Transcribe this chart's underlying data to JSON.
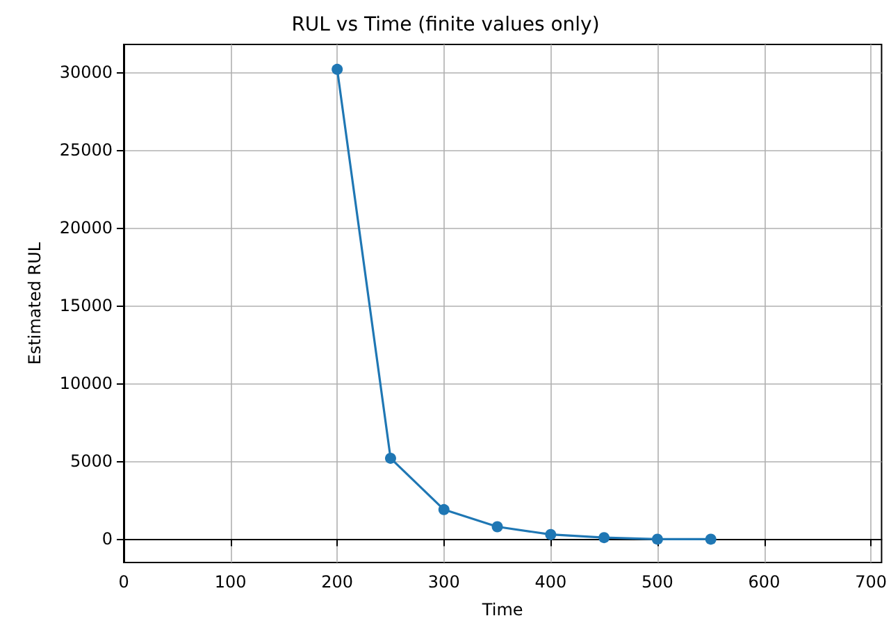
{
  "chart_data": {
    "type": "line",
    "title": "RUL vs Time (finite values only)",
    "xlabel": "Time",
    "ylabel": "Estimated RUL",
    "x": [
      200,
      250,
      300,
      350,
      400,
      450,
      500,
      550
    ],
    "series": [
      {
        "color": "#1f77b4",
        "values": [
          30200,
          5200,
          1900,
          800,
          300,
          100,
          0,
          0
        ]
      }
    ],
    "xlim": [
      0,
      710
    ],
    "xticks": [
      0,
      100,
      200,
      300,
      400,
      500,
      600,
      700
    ],
    "ylim": [
      -1500,
      31800
    ],
    "yticks": [
      0,
      5000,
      10000,
      15000,
      20000,
      25000,
      30000
    ],
    "grid": true,
    "marker": "circle",
    "line_style": "solid"
  }
}
